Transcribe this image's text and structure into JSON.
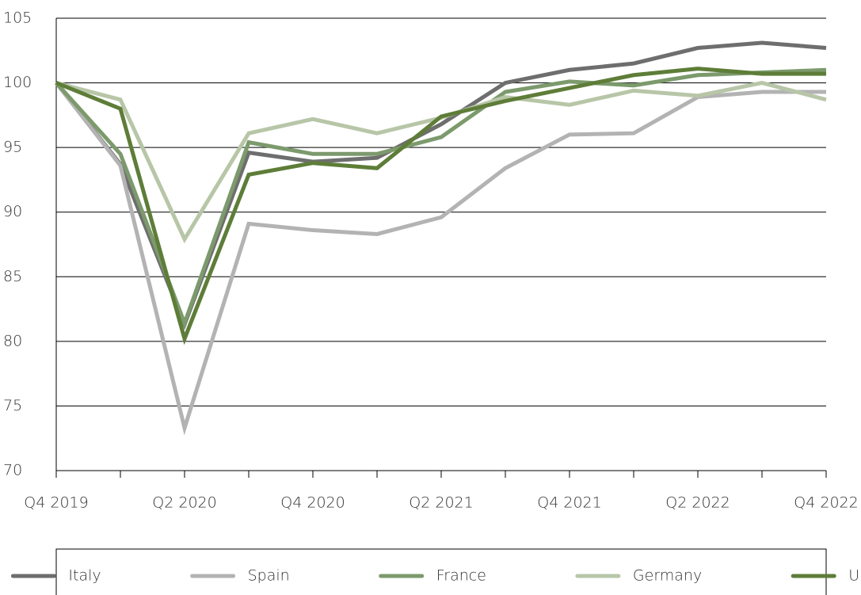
{
  "chart_data": {
    "type": "line",
    "categories": [
      "Q4 2019",
      null,
      "Q2 2020",
      null,
      "Q4 2020",
      null,
      "Q2 2021",
      null,
      "Q4 2021",
      null,
      "Q2 2022",
      null,
      "Q4 2022"
    ],
    "series": [
      {
        "name": "Italy",
        "color": "#6e6e6e",
        "values": [
          100,
          93.7,
          81.3,
          94.6,
          93.9,
          94.2,
          96.8,
          100,
          101,
          101.5,
          102.7,
          103.1,
          102.7
        ]
      },
      {
        "name": "Spain",
        "color": "#b3b3b3",
        "values": [
          100,
          93.6,
          73.3,
          89.1,
          88.6,
          88.3,
          89.6,
          93.4,
          96,
          96.1,
          98.9,
          99.3,
          99.3
        ]
      },
      {
        "name": "France",
        "color": "#7c9a6c",
        "values": [
          100,
          94.5,
          81.4,
          95.4,
          94.5,
          94.5,
          95.8,
          99.3,
          100.1,
          99.8,
          100.6,
          100.8,
          101
        ]
      },
      {
        "name": "Germany",
        "color": "#b8c6a8",
        "values": [
          100,
          98.7,
          87.9,
          96.1,
          97.2,
          96.1,
          97.3,
          98.9,
          98.3,
          99.4,
          99,
          100,
          98.7
        ]
      },
      {
        "name": "UK",
        "color": "#5e7d38",
        "values": [
          100,
          98,
          80.2,
          92.9,
          93.8,
          93.4,
          97.4,
          98.6,
          99.6,
          100.6,
          101.1,
          100.7,
          100.7
        ]
      }
    ],
    "ylim": [
      70,
      105
    ],
    "yticks": [
      70,
      75,
      80,
      85,
      90,
      95,
      100,
      105
    ],
    "grid": true,
    "legend": "bottom"
  }
}
